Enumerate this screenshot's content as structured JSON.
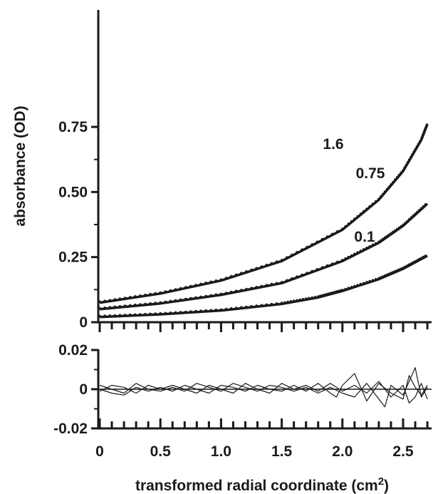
{
  "chart_data": [
    {
      "type": "line",
      "xlabel": "transformed radial coordinate (cm",
      "xlabel_superscript": "2",
      "xlabel_close": ")",
      "ylabel": "absorbance (OD)",
      "xlim": [
        0,
        2.7
      ],
      "ylim": [
        0,
        0.78
      ],
      "yticks": [
        0,
        0.25,
        0.5,
        0.75
      ],
      "ytick_labels": [
        "0",
        "0.25",
        "0.50",
        "0.75"
      ],
      "series": [
        {
          "name": "1.6",
          "points": [
            [
              0,
              0.075
            ],
            [
              0.5,
              0.11
            ],
            [
              1.0,
              0.16
            ],
            [
              1.5,
              0.235
            ],
            [
              2.0,
              0.355
            ],
            [
              2.3,
              0.47
            ],
            [
              2.5,
              0.58
            ],
            [
              2.65,
              0.7
            ],
            [
              2.7,
              0.76
            ]
          ]
        },
        {
          "name": "0.75",
          "points": [
            [
              0,
              0.05
            ],
            [
              0.5,
              0.072
            ],
            [
              1.0,
              0.105
            ],
            [
              1.5,
              0.15
            ],
            [
              2.0,
              0.235
            ],
            [
              2.3,
              0.305
            ],
            [
              2.5,
              0.37
            ],
            [
              2.7,
              0.455
            ]
          ]
        },
        {
          "name": "0.1",
          "points": [
            [
              0,
              0.02
            ],
            [
              0.5,
              0.03
            ],
            [
              1.0,
              0.045
            ],
            [
              1.5,
              0.07
            ],
            [
              1.8,
              0.095
            ],
            [
              2.0,
              0.12
            ],
            [
              2.3,
              0.165
            ],
            [
              2.5,
              0.205
            ],
            [
              2.7,
              0.255
            ]
          ]
        }
      ]
    },
    {
      "type": "line",
      "xlim": [
        0,
        2.7
      ],
      "ylim": [
        -0.02,
        0.02
      ],
      "xticks": [
        0,
        0.5,
        1.0,
        1.5,
        2.0,
        2.5
      ],
      "xtick_labels": [
        "0",
        "0.5",
        "1.0",
        "1.5",
        "2.0",
        "2.5"
      ],
      "yticks": [
        -0.02,
        0,
        0.02
      ],
      "ytick_labels": [
        "-0.02",
        "0",
        "0.02"
      ],
      "series": [
        {
          "points": [
            [
              0,
              0.0
            ],
            [
              0.1,
              -0.002
            ],
            [
              0.2,
              -0.003
            ],
            [
              0.3,
              0.001
            ],
            [
              0.4,
              -0.001
            ],
            [
              0.5,
              0.001
            ],
            [
              0.6,
              -0.001
            ],
            [
              0.7,
              0.002
            ],
            [
              0.8,
              0.0
            ],
            [
              0.9,
              -0.002
            ],
            [
              1.0,
              0.002
            ],
            [
              1.1,
              0.001
            ],
            [
              1.2,
              -0.001
            ],
            [
              1.3,
              0.002
            ],
            [
              1.4,
              0.0
            ],
            [
              1.5,
              -0.001
            ],
            [
              1.6,
              0.002
            ],
            [
              1.7,
              -0.001
            ],
            [
              1.8,
              0.003
            ],
            [
              1.9,
              -0.002
            ],
            [
              1.95,
              -0.004
            ],
            [
              2.0,
              0.002
            ],
            [
              2.1,
              0.008
            ],
            [
              2.15,
              0.001
            ],
            [
              2.2,
              -0.006
            ],
            [
              2.3,
              0.003
            ],
            [
              2.4,
              -0.002
            ],
            [
              2.5,
              -0.005
            ],
            [
              2.55,
              0.007
            ],
            [
              2.6,
              0.001
            ],
            [
              2.65,
              -0.003
            ],
            [
              2.7,
              0.002
            ]
          ]
        },
        {
          "points": [
            [
              0,
              0.002
            ],
            [
              0.1,
              0.0
            ],
            [
              0.2,
              -0.002
            ],
            [
              0.3,
              0.003
            ],
            [
              0.4,
              0.0
            ],
            [
              0.5,
              -0.001
            ],
            [
              0.6,
              0.001
            ],
            [
              0.7,
              -0.001
            ],
            [
              0.8,
              0.003
            ],
            [
              0.9,
              0.001
            ],
            [
              1.0,
              -0.001
            ],
            [
              1.1,
              0.003
            ],
            [
              1.2,
              0.001
            ],
            [
              1.3,
              -0.001
            ],
            [
              1.4,
              0.002
            ],
            [
              1.5,
              0.001
            ],
            [
              1.6,
              -0.001
            ],
            [
              1.7,
              0.001
            ],
            [
              1.8,
              -0.002
            ],
            [
              1.9,
              0.001
            ],
            [
              2.0,
              -0.002
            ],
            [
              2.1,
              -0.004
            ],
            [
              2.2,
              0.003
            ],
            [
              2.3,
              -0.005
            ],
            [
              2.35,
              -0.009
            ],
            [
              2.4,
              0.002
            ],
            [
              2.5,
              -0.003
            ],
            [
              2.6,
              0.011
            ],
            [
              2.65,
              -0.004
            ],
            [
              2.7,
              0.001
            ]
          ]
        },
        {
          "points": [
            [
              0,
              -0.001
            ],
            [
              0.1,
              0.002
            ],
            [
              0.2,
              0.001
            ],
            [
              0.3,
              -0.002
            ],
            [
              0.4,
              0.002
            ],
            [
              0.5,
              0.0
            ],
            [
              0.6,
              0.002
            ],
            [
              0.7,
              0.0
            ],
            [
              0.8,
              -0.002
            ],
            [
              0.9,
              0.002
            ],
            [
              1.0,
              0.0
            ],
            [
              1.1,
              -0.002
            ],
            [
              1.2,
              0.003
            ],
            [
              1.3,
              0.0
            ],
            [
              1.4,
              -0.002
            ],
            [
              1.5,
              0.003
            ],
            [
              1.6,
              0.0
            ],
            [
              1.7,
              0.002
            ],
            [
              1.8,
              -0.001
            ],
            [
              1.9,
              0.003
            ],
            [
              2.0,
              -0.001
            ],
            [
              2.1,
              0.002
            ],
            [
              2.2,
              -0.002
            ],
            [
              2.3,
              0.004
            ],
            [
              2.4,
              -0.004
            ],
            [
              2.5,
              0.002
            ],
            [
              2.55,
              -0.007
            ],
            [
              2.6,
              -0.004
            ],
            [
              2.65,
              0.003
            ],
            [
              2.7,
              -0.005
            ]
          ]
        }
      ]
    }
  ]
}
